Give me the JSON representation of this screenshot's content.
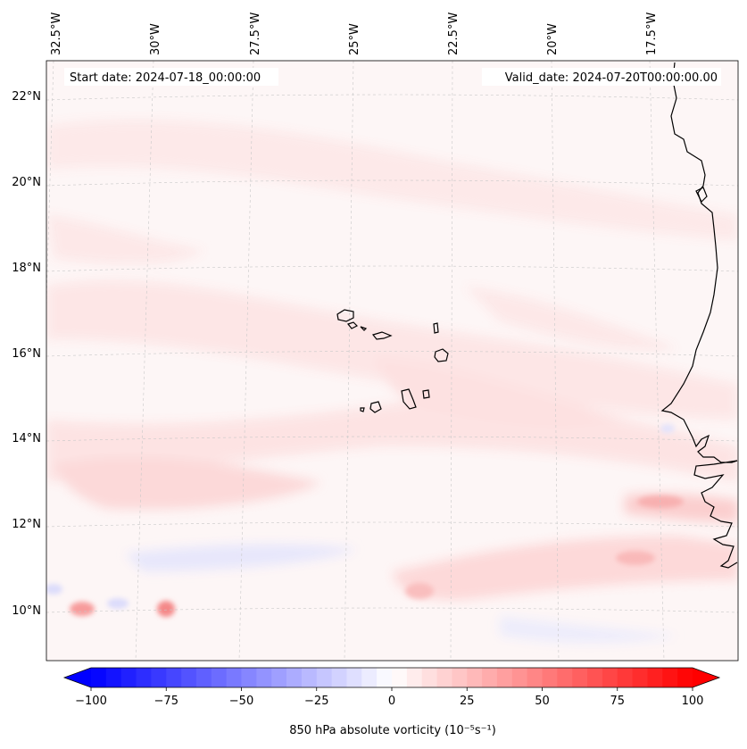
{
  "map": {
    "start_date_label": "Start date: 2024-07-18_00:00:00",
    "valid_date_label": "Valid_date: 2024-07-20T00:00:00.00",
    "lon_labels": [
      "32.5°W",
      "30°W",
      "27.5°W",
      "25°W",
      "22.5°W",
      "20°W",
      "17.5°W"
    ],
    "lat_labels": [
      "22°N",
      "20°N",
      "18°N",
      "16°N",
      "14°N",
      "12°N",
      "10°N"
    ],
    "gridlines": "dashed light gray",
    "coastline_color": "#000000"
  },
  "colorbar": {
    "ticks": [
      "−100",
      "−75",
      "−50",
      "−25",
      "0",
      "25",
      "50",
      "75",
      "100"
    ],
    "label": "850 hPa absolute vorticity (10⁻⁵s⁻¹)",
    "min": -100,
    "max": 100,
    "cmap": "bwr",
    "extend": "both"
  }
}
